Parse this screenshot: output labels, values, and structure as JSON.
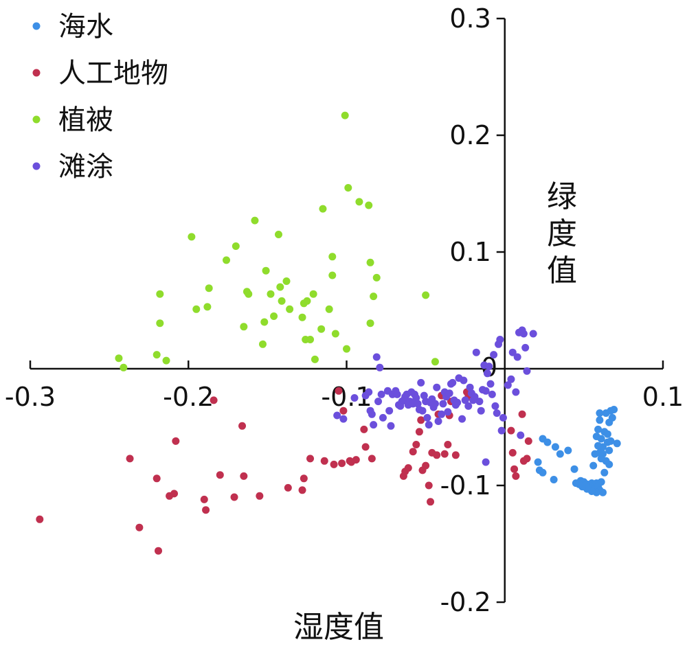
{
  "chart_data": {
    "type": "scatter",
    "xlabel": "湿度值",
    "ylabel": "绿度值",
    "xlim": [
      -0.3,
      0.1
    ],
    "ylim": [
      -0.2,
      0.3
    ],
    "xticks": [
      {
        "value": -0.3,
        "label": "-0.3"
      },
      {
        "value": -0.2,
        "label": "-0.2"
      },
      {
        "value": -0.1,
        "label": "-0.1"
      },
      {
        "value": 0,
        "label": "0"
      },
      {
        "value": 0.1,
        "label": "0.1"
      }
    ],
    "yticks": [
      {
        "value": -0.2,
        "label": "-0.2"
      },
      {
        "value": -0.1,
        "label": "-0.1"
      },
      {
        "value": 0.1,
        "label": "0.1"
      },
      {
        "value": 0.2,
        "label": "0.2"
      },
      {
        "value": 0.3,
        "label": "0.3"
      }
    ],
    "grid": false,
    "legend_position": "top-left",
    "series": [
      {
        "name": "海水",
        "color": "#3d8fe6",
        "points": [
          [
            0.024,
            -0.06
          ],
          [
            0.027,
            -0.063
          ],
          [
            0.032,
            -0.067
          ],
          [
            0.035,
            -0.073
          ],
          [
            0.04,
            -0.07
          ],
          [
            0.021,
            -0.08
          ],
          [
            0.022,
            -0.087
          ],
          [
            0.024,
            -0.089
          ],
          [
            0.031,
            -0.095
          ],
          [
            0.044,
            -0.086
          ],
          [
            0.045,
            -0.098
          ],
          [
            0.048,
            -0.096
          ],
          [
            0.05,
            -0.097
          ],
          [
            0.052,
            -0.099
          ],
          [
            0.053,
            -0.1
          ],
          [
            0.054,
            -0.101
          ],
          [
            0.055,
            -0.098
          ],
          [
            0.056,
            -0.1
          ],
          [
            0.057,
            -0.103
          ],
          [
            0.058,
            -0.098
          ],
          [
            0.059,
            -0.101
          ],
          [
            0.06,
            -0.104
          ],
          [
            0.061,
            -0.097
          ],
          [
            0.062,
            -0.106
          ],
          [
            0.058,
            -0.106
          ],
          [
            0.055,
            -0.105
          ],
          [
            0.052,
            -0.103
          ],
          [
            0.049,
            -0.101
          ],
          [
            0.047,
            -0.099
          ],
          [
            0.056,
            -0.083
          ],
          [
            0.057,
            -0.073
          ],
          [
            0.058,
            -0.058
          ],
          [
            0.059,
            -0.052
          ],
          [
            0.06,
            -0.044
          ],
          [
            0.061,
            -0.06
          ],
          [
            0.062,
            -0.067
          ],
          [
            0.063,
            -0.054
          ],
          [
            0.064,
            -0.038
          ],
          [
            0.065,
            -0.063
          ],
          [
            0.066,
            -0.046
          ],
          [
            0.067,
            -0.036
          ],
          [
            0.068,
            -0.042
          ],
          [
            0.066,
            -0.082
          ],
          [
            0.064,
            -0.079
          ],
          [
            0.062,
            -0.073
          ],
          [
            0.063,
            -0.089
          ],
          [
            0.061,
            -0.077
          ],
          [
            0.059,
            -0.066
          ],
          [
            0.06,
            -0.072
          ],
          [
            0.065,
            -0.056
          ],
          [
            0.066,
            -0.07
          ],
          [
            0.067,
            -0.062
          ],
          [
            0.069,
            -0.035
          ],
          [
            0.071,
            -0.064
          ],
          [
            0.06,
            -0.038
          ]
        ]
      },
      {
        "name": "人工地物",
        "color": "#c0304f",
        "points": [
          [
            -0.294,
            -0.129
          ],
          [
            -0.237,
            -0.077
          ],
          [
            -0.231,
            -0.136
          ],
          [
            -0.22,
            -0.094
          ],
          [
            -0.219,
            -0.156
          ],
          [
            -0.212,
            -0.109
          ],
          [
            -0.209,
            -0.107
          ],
          [
            -0.208,
            -0.062
          ],
          [
            -0.19,
            -0.112
          ],
          [
            -0.189,
            -0.121
          ],
          [
            -0.184,
            -0.027
          ],
          [
            -0.18,
            -0.091
          ],
          [
            -0.171,
            -0.11
          ],
          [
            -0.166,
            -0.049
          ],
          [
            -0.165,
            -0.092
          ],
          [
            -0.155,
            -0.109
          ],
          [
            -0.137,
            -0.102
          ],
          [
            -0.128,
            -0.104
          ],
          [
            -0.127,
            -0.094
          ],
          [
            -0.123,
            -0.077
          ],
          [
            -0.114,
            -0.079
          ],
          [
            -0.108,
            -0.082
          ],
          [
            -0.105,
            -0.019
          ],
          [
            -0.103,
            -0.081
          ],
          [
            -0.102,
            -0.036
          ],
          [
            -0.098,
            -0.079
          ],
          [
            -0.097,
            -0.08
          ],
          [
            -0.094,
            -0.078
          ],
          [
            -0.089,
            -0.052
          ],
          [
            -0.088,
            -0.067
          ],
          [
            -0.084,
            -0.077
          ],
          [
            -0.064,
            -0.092
          ],
          [
            -0.063,
            -0.088
          ],
          [
            -0.061,
            -0.085
          ],
          [
            -0.058,
            -0.071
          ],
          [
            -0.056,
            -0.065
          ],
          [
            -0.054,
            -0.054
          ],
          [
            -0.053,
            -0.044
          ],
          [
            -0.052,
            -0.087
          ],
          [
            -0.05,
            -0.083
          ],
          [
            -0.048,
            -0.1
          ],
          [
            -0.047,
            -0.114
          ],
          [
            -0.046,
            -0.072
          ],
          [
            -0.043,
            -0.074
          ],
          [
            -0.042,
            -0.039
          ],
          [
            -0.04,
            -0.023
          ],
          [
            -0.038,
            -0.073
          ],
          [
            -0.036,
            -0.065
          ],
          [
            -0.035,
            -0.04
          ],
          [
            -0.034,
            -0.028
          ],
          [
            -0.031,
            -0.074
          ],
          [
            -0.024,
            -0.02
          ],
          [
            -0.023,
            -0.024
          ],
          [
            0.004,
            -0.053
          ],
          [
            0.005,
            -0.072
          ],
          [
            0.006,
            -0.086
          ],
          [
            0.007,
            -0.092
          ],
          [
            0.011,
            -0.039
          ],
          [
            0.012,
            -0.079
          ],
          [
            0.014,
            -0.077
          ],
          [
            0.015,
            -0.062
          ]
        ]
      },
      {
        "name": "植被",
        "color": "#8fdc2c",
        "points": [
          [
            -0.244,
            0.009
          ],
          [
            -0.241,
            0.001
          ],
          [
            -0.22,
            0.012
          ],
          [
            -0.218,
            0.064
          ],
          [
            -0.218,
            0.039
          ],
          [
            -0.214,
            0.007
          ],
          [
            -0.198,
            0.113
          ],
          [
            -0.195,
            0.051
          ],
          [
            -0.188,
            0.053
          ],
          [
            -0.187,
            0.069
          ],
          [
            -0.176,
            0.093
          ],
          [
            -0.17,
            0.105
          ],
          [
            -0.165,
            0.036
          ],
          [
            -0.163,
            0.066
          ],
          [
            -0.162,
            0.064
          ],
          [
            -0.158,
            0.127
          ],
          [
            -0.153,
            0.021
          ],
          [
            -0.152,
            0.04
          ],
          [
            -0.151,
            0.084
          ],
          [
            -0.148,
            0.064
          ],
          [
            -0.146,
            0.045
          ],
          [
            -0.143,
            0.115
          ],
          [
            -0.142,
            0.07
          ],
          [
            -0.141,
            0.058
          ],
          [
            -0.138,
            0.075
          ],
          [
            -0.136,
            0.051
          ],
          [
            -0.128,
            0.044
          ],
          [
            -0.127,
            0.056
          ],
          [
            -0.126,
            0.025
          ],
          [
            -0.125,
            0.058
          ],
          [
            -0.123,
            0.025
          ],
          [
            -0.121,
            0.064
          ],
          [
            -0.12,
            0.008
          ],
          [
            -0.116,
            0.034
          ],
          [
            -0.115,
            0.137
          ],
          [
            -0.111,
            0.051
          ],
          [
            -0.109,
            0.096
          ],
          [
            -0.109,
            0.08
          ],
          [
            -0.107,
            0.03
          ],
          [
            -0.101,
            0.217
          ],
          [
            -0.1,
            0.017
          ],
          [
            -0.099,
            0.155
          ],
          [
            -0.092,
            0.143
          ],
          [
            -0.086,
            0.14
          ],
          [
            -0.085,
            0.091
          ],
          [
            -0.085,
            0.039
          ],
          [
            -0.083,
            0.062
          ],
          [
            -0.081,
            0.078
          ],
          [
            -0.05,
            0.063
          ],
          [
            -0.044,
            0.006
          ]
        ]
      },
      {
        "name": "滩涂",
        "color": "#6b4fdc",
        "points": [
          [
            -0.106,
            -0.04
          ],
          [
            -0.102,
            -0.043
          ],
          [
            -0.095,
            -0.025
          ],
          [
            -0.088,
            -0.023
          ],
          [
            -0.086,
            -0.02
          ],
          [
            -0.085,
            -0.036
          ],
          [
            -0.084,
            -0.039
          ],
          [
            -0.083,
            -0.048
          ],
          [
            -0.081,
            0.01
          ],
          [
            -0.08,
            -0.028
          ],
          [
            -0.079,
            0.001
          ],
          [
            -0.078,
            -0.022
          ],
          [
            -0.077,
            -0.042
          ],
          [
            -0.074,
            -0.019
          ],
          [
            -0.073,
            -0.036
          ],
          [
            -0.072,
            -0.049
          ],
          [
            -0.071,
            -0.022
          ],
          [
            -0.069,
            -0.019
          ],
          [
            -0.068,
            -0.022
          ],
          [
            -0.067,
            -0.031
          ],
          [
            -0.066,
            -0.032
          ],
          [
            -0.065,
            -0.028
          ],
          [
            -0.064,
            -0.027
          ],
          [
            -0.063,
            -0.024
          ],
          [
            -0.062,
            -0.022
          ],
          [
            -0.061,
            -0.031
          ],
          [
            -0.06,
            -0.028
          ],
          [
            -0.059,
            -0.02
          ],
          [
            -0.058,
            -0.03
          ],
          [
            -0.057,
            -0.022
          ],
          [
            -0.056,
            -0.025
          ],
          [
            -0.055,
            -0.03
          ],
          [
            -0.054,
            -0.035
          ],
          [
            -0.053,
            -0.012
          ],
          [
            -0.052,
            -0.036
          ],
          [
            -0.051,
            -0.023
          ],
          [
            -0.05,
            -0.028
          ],
          [
            -0.049,
            -0.042
          ],
          [
            -0.048,
            -0.048
          ],
          [
            -0.047,
            -0.029
          ],
          [
            -0.046,
            -0.026
          ],
          [
            -0.045,
            -0.033
          ],
          [
            -0.044,
            -0.03
          ],
          [
            -0.043,
            -0.016
          ],
          [
            -0.042,
            -0.045
          ],
          [
            -0.04,
            -0.039
          ],
          [
            -0.039,
            -0.03
          ],
          [
            -0.038,
            -0.02
          ],
          [
            -0.037,
            -0.024
          ],
          [
            -0.036,
            -0.037
          ],
          [
            -0.035,
            -0.021
          ],
          [
            -0.034,
            -0.013
          ],
          [
            -0.033,
            -0.012
          ],
          [
            -0.032,
            -0.027
          ],
          [
            -0.031,
            -0.031
          ],
          [
            -0.03,
            -0.029
          ],
          [
            -0.029,
            -0.008
          ],
          [
            -0.027,
            -0.043
          ],
          [
            -0.026,
            -0.01
          ],
          [
            -0.025,
            -0.027
          ],
          [
            -0.023,
            -0.032
          ],
          [
            -0.022,
            -0.016
          ],
          [
            -0.021,
            -0.021
          ],
          [
            -0.02,
            -0.027
          ],
          [
            -0.019,
            -0.024
          ],
          [
            -0.018,
            0.014
          ],
          [
            -0.016,
            -0.028
          ],
          [
            -0.015,
            -0.036
          ],
          [
            -0.014,
            -0.018
          ],
          [
            -0.013,
            0.003
          ],
          [
            -0.012,
            -0.019
          ],
          [
            -0.011,
            -0.004
          ],
          [
            -0.01,
            0.002
          ],
          [
            -0.009,
            -0.013
          ],
          [
            -0.008,
            -0.022
          ],
          [
            -0.007,
            0.012
          ],
          [
            -0.006,
            -0.032
          ],
          [
            -0.005,
            -0.038
          ],
          [
            -0.004,
            0.021
          ],
          [
            -0.003,
            0.025
          ],
          [
            -0.002,
            -0.053
          ],
          [
            -0.001,
            -0.042
          ],
          [
            0.002,
            -0.014
          ],
          [
            0.004,
            -0.009
          ],
          [
            0.005,
            0.014
          ],
          [
            0.007,
            -0.02
          ],
          [
            0.008,
            0.01
          ],
          [
            0.009,
            0.031
          ],
          [
            0.01,
            -0.057
          ],
          [
            0.011,
            0.033
          ],
          [
            0.012,
            0.03
          ],
          [
            0.013,
            0.018
          ],
          [
            0.014,
            -0.002
          ],
          [
            -0.012,
            -0.08
          ],
          [
            0.018,
            0.03
          ]
        ]
      }
    ]
  }
}
